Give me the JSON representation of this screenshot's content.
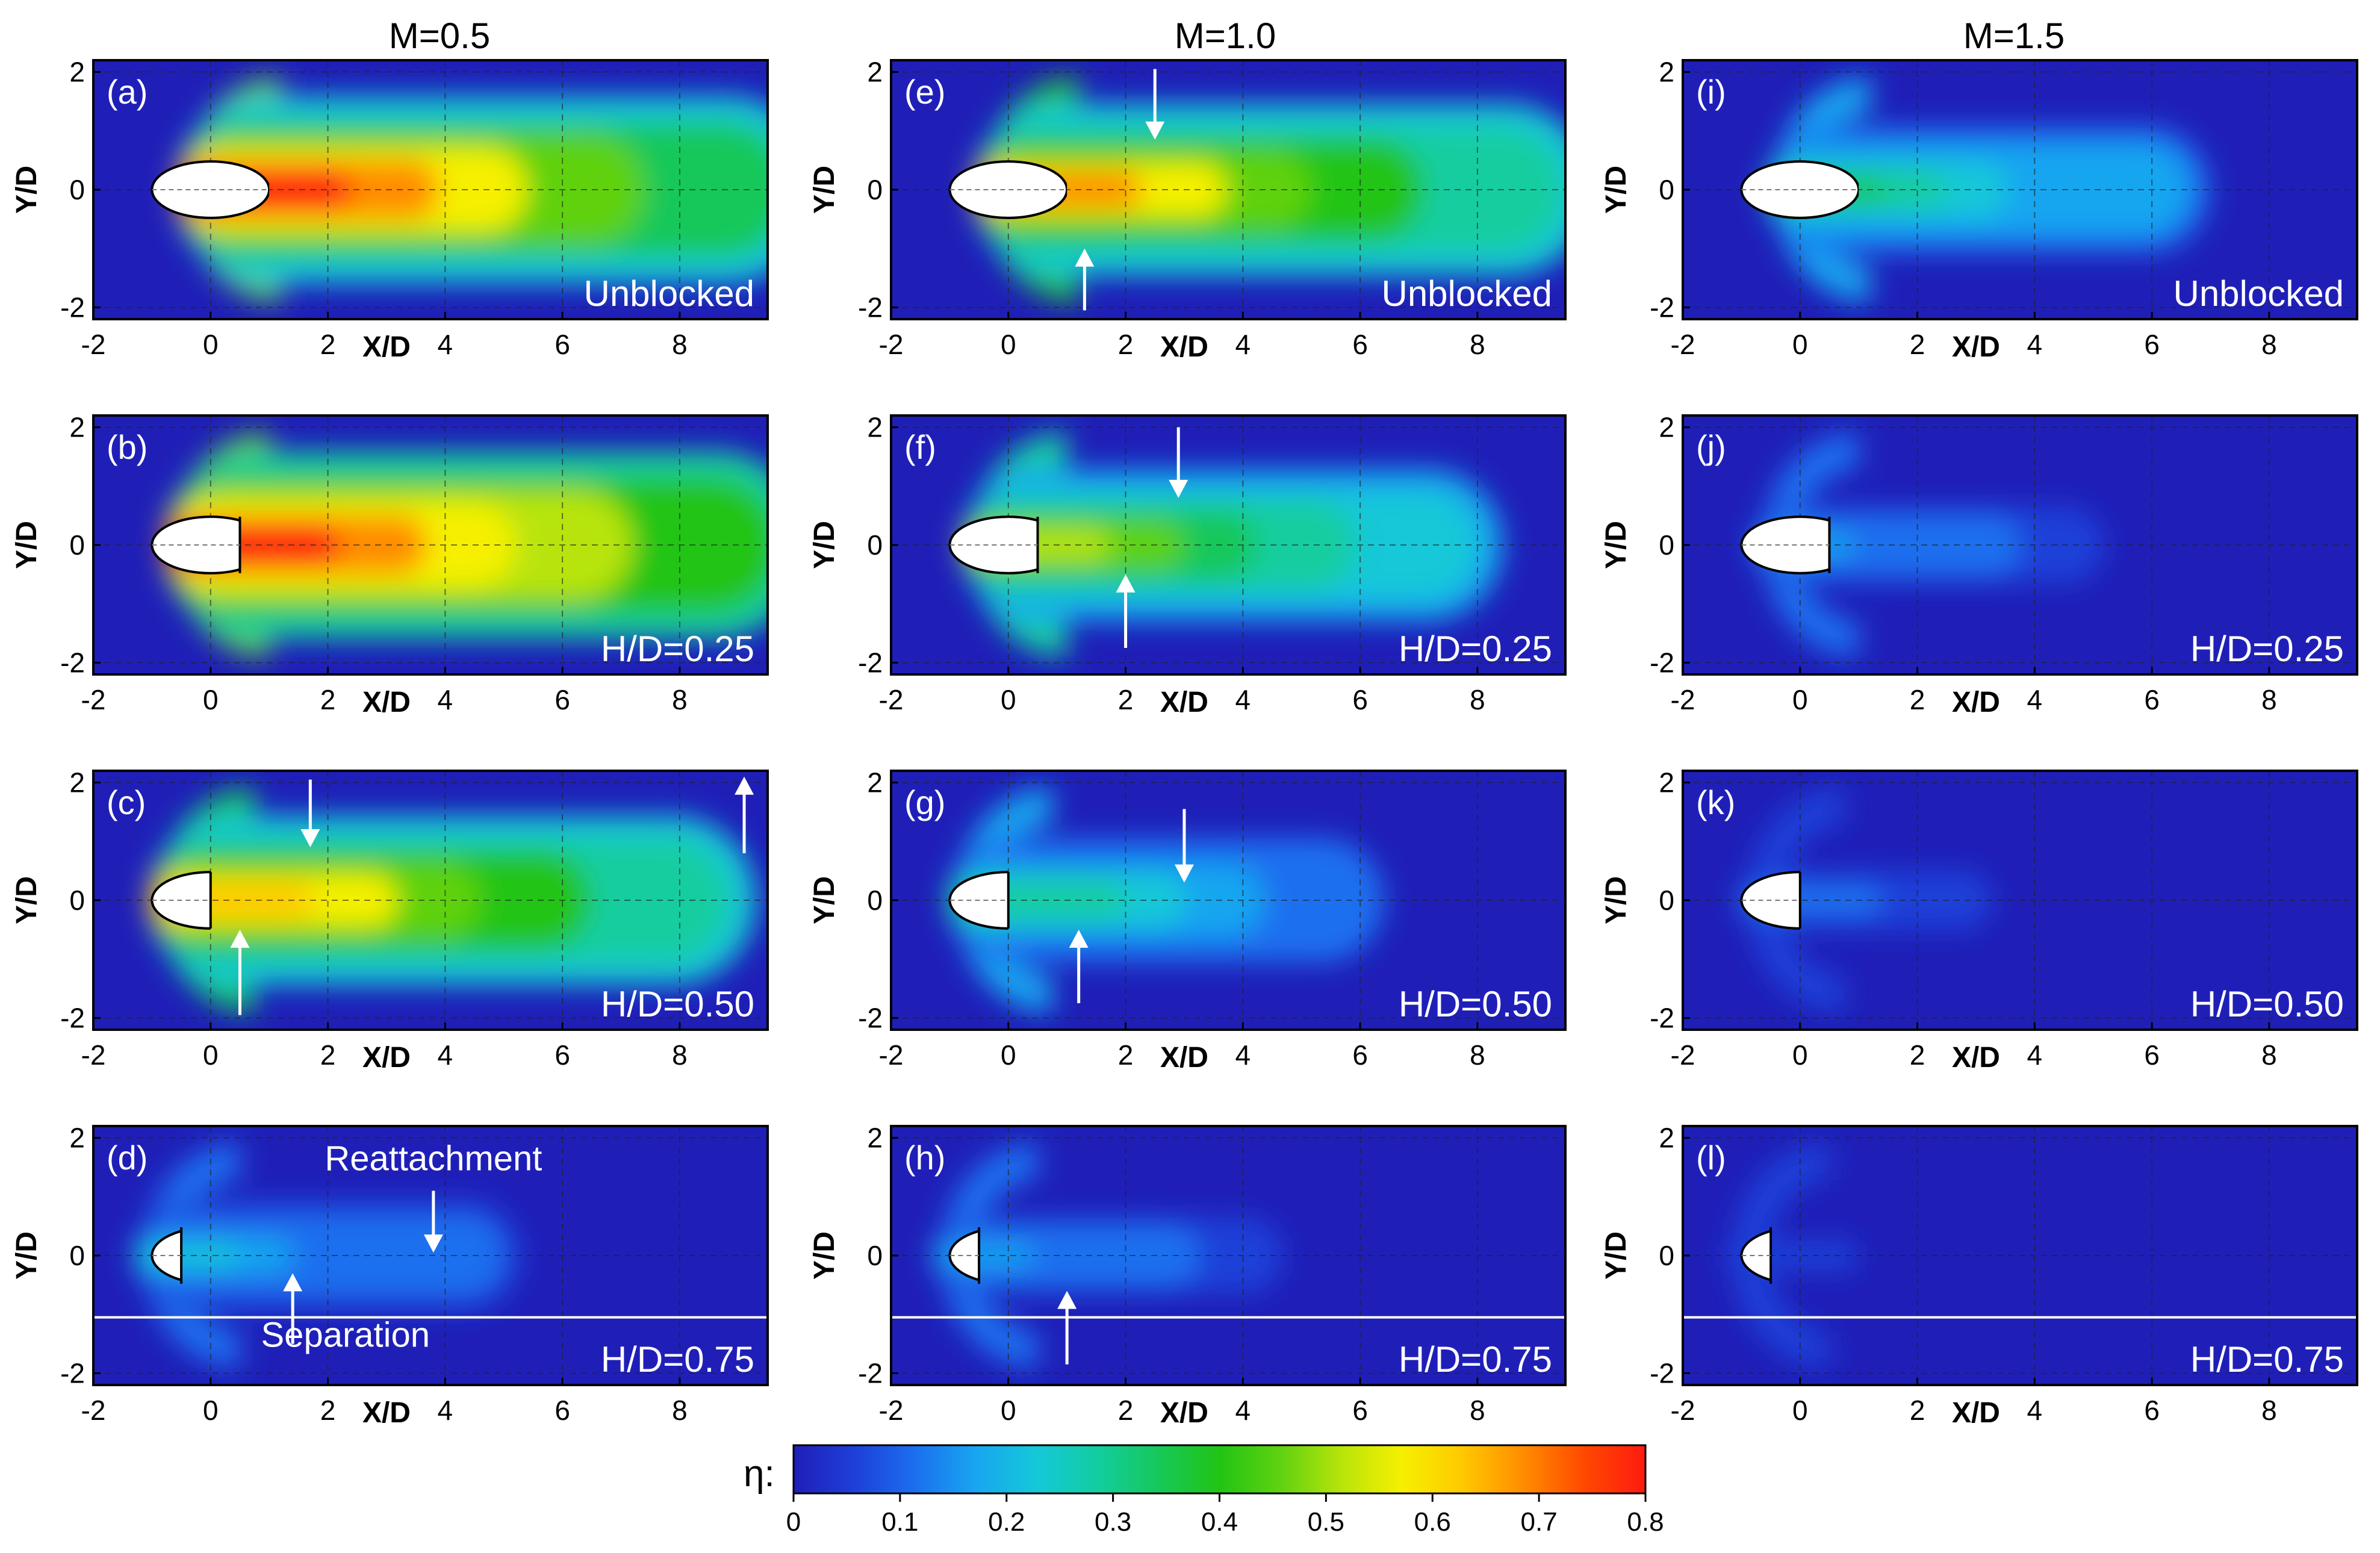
{
  "colors": {
    "colormap": [
      "#1f1fb8",
      "#1e3fd8",
      "#1b6fef",
      "#18a6f0",
      "#14c8d8",
      "#12cda0",
      "#16c85a",
      "#22c414",
      "#5fd210",
      "#b8e40a",
      "#f6f000",
      "#ffc800",
      "#ff8c00",
      "#ff4800",
      "#ff1a10"
    ],
    "annotation": "#ffffff",
    "panel_border": "#000000"
  },
  "figure": {
    "column_titles": [
      "M=0.5",
      "M=1.0",
      "M=1.5"
    ],
    "colorbar": {
      "symbol": "η:",
      "ticks": [
        "0",
        "0.1",
        "0.2",
        "0.3",
        "0.4",
        "0.5",
        "0.6",
        "0.7",
        "0.8"
      ],
      "range": [
        0,
        0.8
      ]
    },
    "annotations": {
      "reattachment": "Reattachment",
      "separation": "Separation"
    }
  },
  "chart_data": {
    "type": "heatmap",
    "quantity": "η",
    "xlabel": "X/D",
    "ylabel": "Y/D",
    "xlim": [
      -2,
      9.5
    ],
    "ylim": [
      -2.2,
      2.2
    ],
    "xticks": [
      "-2",
      "0",
      "2",
      "4",
      "6",
      "8"
    ],
    "yticks": [
      "2",
      "0",
      "-2"
    ],
    "grid": true,
    "panels": [
      {
        "label": "(a)",
        "M": 0.5,
        "condition": "Unblocked",
        "intensity": 1.0,
        "hole": "full"
      },
      {
        "label": "(b)",
        "M": 0.5,
        "condition": "H/D=0.25",
        "intensity": 1.05,
        "hole": "blocked25"
      },
      {
        "label": "(c)",
        "M": 0.5,
        "condition": "H/D=0.50",
        "intensity": 0.82,
        "hole": "blocked50"
      },
      {
        "label": "(d)",
        "M": 0.5,
        "condition": "H/D=0.75",
        "intensity": 0.25,
        "hole": "blocked75"
      },
      {
        "label": "(e)",
        "M": 1.0,
        "condition": "Unblocked",
        "intensity": 0.85,
        "hole": "full"
      },
      {
        "label": "(f)",
        "M": 1.0,
        "condition": "H/D=0.25",
        "intensity": 0.65,
        "hole": "blocked25"
      },
      {
        "label": "(g)",
        "M": 1.0,
        "condition": "H/D=0.50",
        "intensity": 0.38,
        "hole": "blocked50"
      },
      {
        "label": "(h)",
        "M": 1.0,
        "condition": "H/D=0.75",
        "intensity": 0.2,
        "hole": "blocked75"
      },
      {
        "label": "(i)",
        "M": 1.5,
        "condition": "Unblocked",
        "intensity": 0.4,
        "hole": "full"
      },
      {
        "label": "(j)",
        "M": 1.5,
        "condition": "H/D=0.25",
        "intensity": 0.2,
        "hole": "blocked25"
      },
      {
        "label": "(k)",
        "M": 1.5,
        "condition": "H/D=0.50",
        "intensity": 0.15,
        "hole": "blocked50"
      },
      {
        "label": "(l)",
        "M": 1.5,
        "condition": "H/D=0.75",
        "intensity": 0.1,
        "hole": "blocked75"
      }
    ]
  }
}
